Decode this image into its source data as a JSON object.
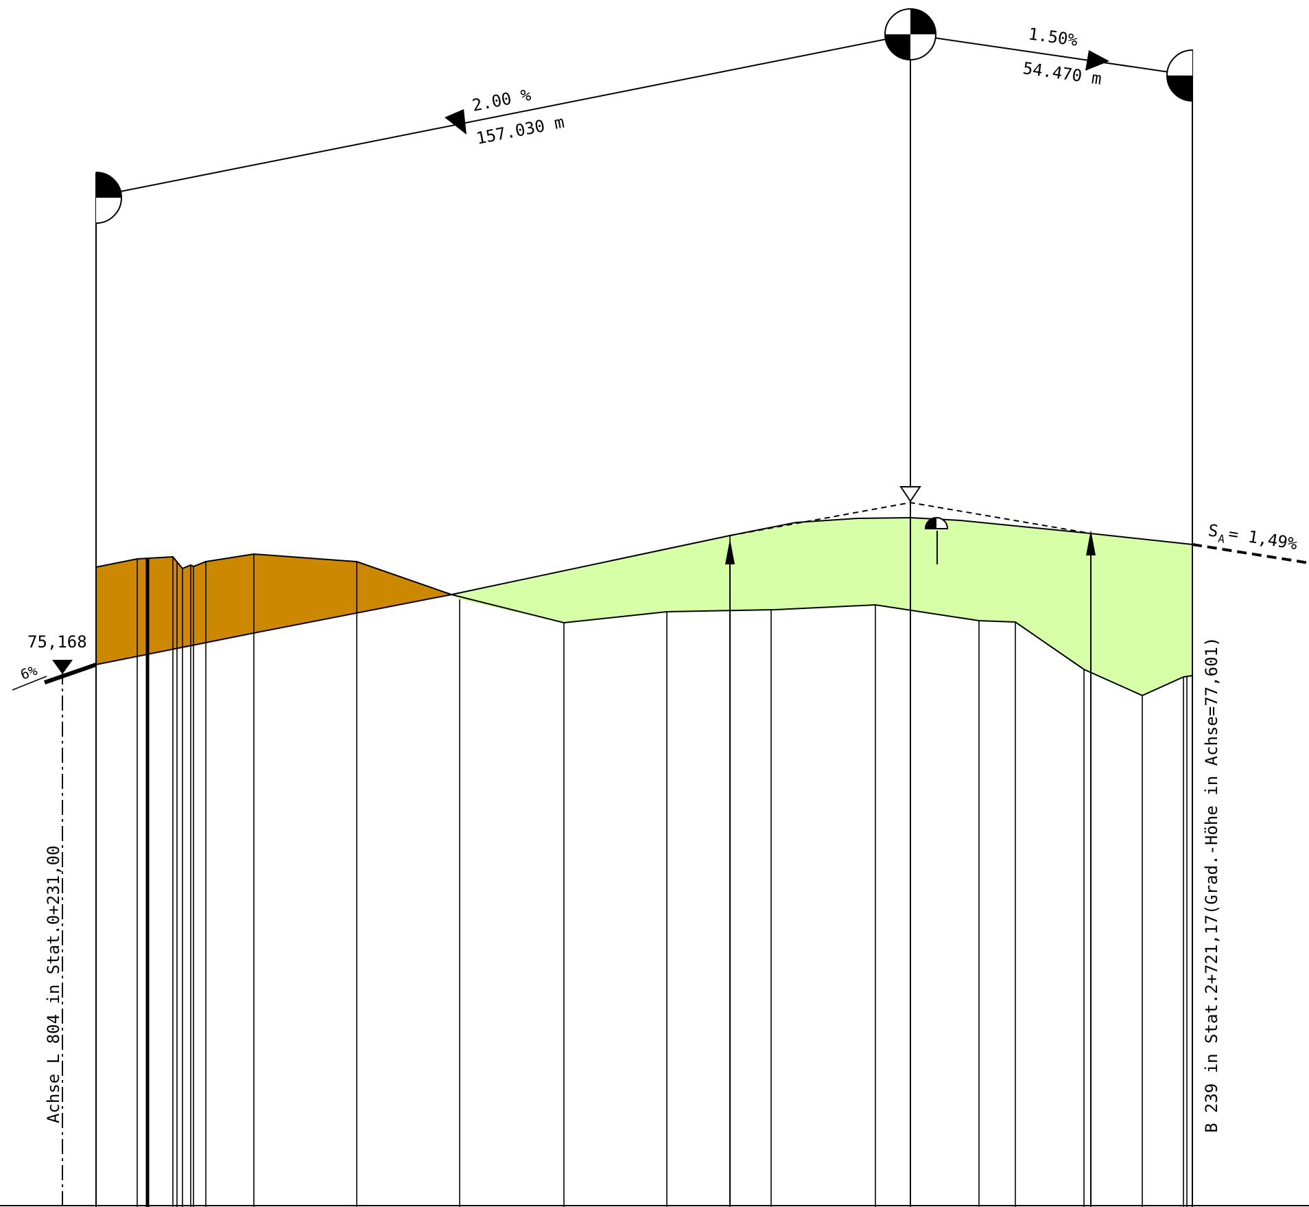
{
  "profile": {
    "slope_left": {
      "grade": "2.00 %",
      "length": "157.030 m"
    },
    "slope_right": {
      "grade": "1.50%",
      "length": "54.470 m"
    },
    "cross_slope": {
      "prefix": "S",
      "subscript": "A",
      "value": " = 1,49%"
    },
    "left_elevation": "75,168",
    "left_grade": "6%",
    "left_axis_label": "Achse L 804 in Stat.0+231,00",
    "right_axis_label": "B 239 in Stat.2+721,17(Grad.-Höhe in Achse=77,601)"
  },
  "colors": {
    "cut_fill": "#cc8800",
    "embankment_fill": "#d7ffa8",
    "line": "#000000"
  }
}
